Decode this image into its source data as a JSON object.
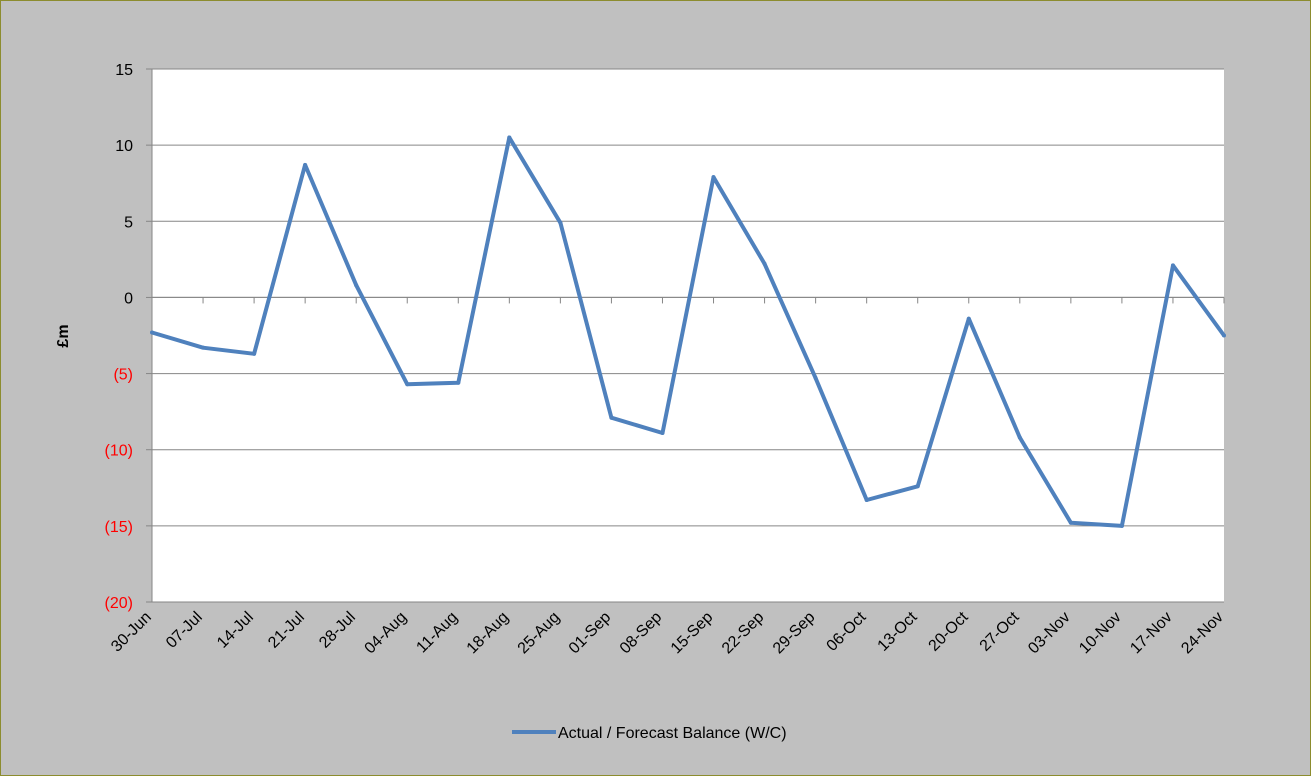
{
  "chart_data": {
    "type": "line",
    "title": "",
    "xlabel": "",
    "ylabel": "£m",
    "ylim": [
      -20,
      15
    ],
    "y_ticks": [
      15,
      10,
      5,
      0,
      -5,
      -10,
      -15,
      -20
    ],
    "y_tick_labels": [
      "15",
      "10",
      "5",
      "0",
      "(5)",
      "(10)",
      "(15)",
      "(20)"
    ],
    "negative_tick_color": "#ff0000",
    "positive_tick_color": "#000000",
    "grid": true,
    "legend_position": "bottom",
    "categories": [
      "30-Jun",
      "07-Jul",
      "14-Jul",
      "21-Jul",
      "28-Jul",
      "04-Aug",
      "11-Aug",
      "18-Aug",
      "25-Aug",
      "01-Sep",
      "08-Sep",
      "15-Sep",
      "22-Sep",
      "29-Sep",
      "06-Oct",
      "13-Oct",
      "20-Oct",
      "27-Oct",
      "03-Nov",
      "10-Nov",
      "17-Nov",
      "24-Nov"
    ],
    "series": [
      {
        "name": "Actual / Forecast Balance (W/C)",
        "color": "#4f81bd",
        "values": [
          -2.3,
          -3.3,
          -3.7,
          8.7,
          0.8,
          -5.7,
          -5.6,
          10.5,
          4.9,
          -7.9,
          -8.9,
          7.9,
          2.2,
          -5.3,
          -13.3,
          -12.4,
          -1.4,
          -9.2,
          -14.8,
          -15.0,
          2.1,
          -2.5
        ]
      }
    ]
  }
}
